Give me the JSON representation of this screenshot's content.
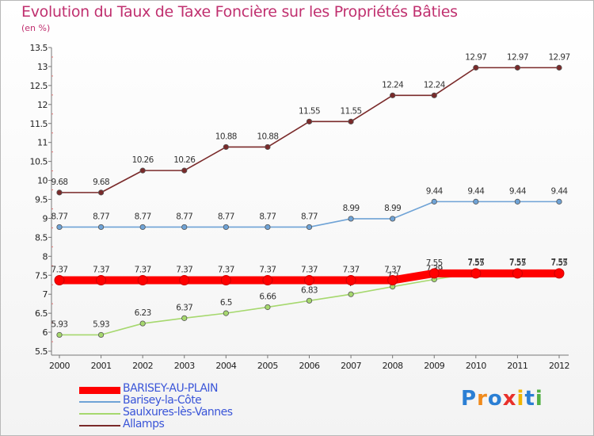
{
  "title": "Evolution du Taux de Taxe Foncière sur les Propriétés Bâties",
  "unit": "(en %)",
  "logo": "Proxiti",
  "chart_data": {
    "type": "line",
    "x": [
      "2000",
      "2001",
      "2002",
      "2003",
      "2004",
      "2005",
      "2006",
      "2007",
      "2008",
      "2009",
      "2010",
      "2011",
      "2012"
    ],
    "ylim": [
      5.5,
      13.5
    ],
    "yticks": [
      "5.5",
      "6",
      "6.5",
      "7",
      "7.5",
      "8",
      "8.5",
      "9",
      "9.5",
      "10",
      "10.5",
      "11",
      "11.5",
      "12",
      "12.5",
      "13",
      "13.5"
    ],
    "grid": false,
    "legend_position": "bottom-left",
    "series": [
      {
        "name": "BARISEY-AU-PLAIN",
        "color": "#ff0000",
        "values": [
          7.37,
          7.37,
          7.37,
          7.37,
          7.37,
          7.37,
          7.37,
          7.37,
          7.37,
          7.55,
          7.55,
          7.55,
          7.55
        ],
        "labels": [
          "7.37",
          "7.37",
          "7.37",
          "7.37",
          "7.37",
          "7.37",
          "7.37",
          "7.37",
          "7.37",
          "7.55",
          "7.55",
          "7.55",
          "7.55"
        ]
      },
      {
        "name": "Barisey-la-Côte",
        "color": "#6fa3d6",
        "values": [
          8.77,
          8.77,
          8.77,
          8.77,
          8.77,
          8.77,
          8.77,
          8.99,
          8.99,
          9.44,
          9.44,
          9.44,
          9.44
        ],
        "labels": [
          "8.77",
          "8.77",
          "8.77",
          "8.77",
          "8.77",
          "8.77",
          "8.77",
          "8.99",
          "8.99",
          "9.44",
          "9.44",
          "9.44",
          "9.44"
        ]
      },
      {
        "name": "Saulxures-lès-Vannes",
        "color": "#a6d86e",
        "values": [
          5.93,
          5.93,
          6.23,
          6.37,
          6.5,
          6.66,
          6.83,
          7.0,
          7.2,
          7.39,
          7.57,
          7.57,
          7.57
        ],
        "labels": [
          "5.93",
          "5.93",
          "6.23",
          "6.37",
          "6.5",
          "6.66",
          "6.83",
          "7",
          "7.2",
          "7.39",
          "7.57",
          "7.57",
          "7.57"
        ]
      },
      {
        "name": "Allamps",
        "color": "#7a2a2a",
        "values": [
          9.68,
          9.68,
          10.26,
          10.26,
          10.88,
          10.88,
          11.55,
          11.55,
          12.24,
          12.24,
          12.97,
          12.97,
          12.97
        ],
        "labels": [
          "9.68",
          "9.68",
          "10.26",
          "10.26",
          "10.88",
          "10.88",
          "11.55",
          "11.55",
          "12.24",
          "12.24",
          "12.97",
          "12.97",
          "12.97"
        ]
      }
    ]
  }
}
